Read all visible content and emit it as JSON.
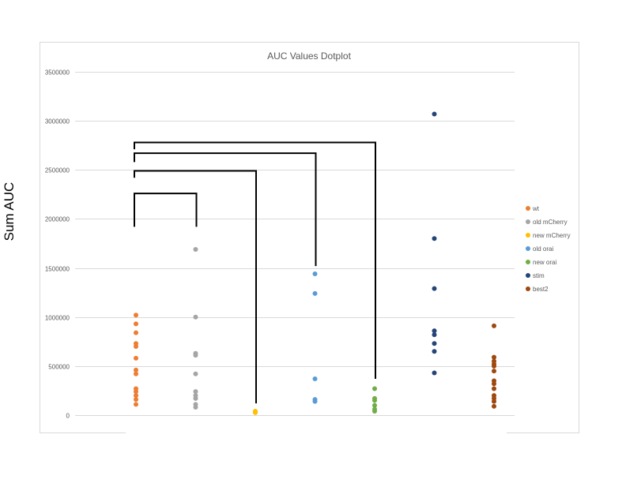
{
  "chart_data": {
    "type": "scatter",
    "title": "AUC Values Dotplot",
    "ylabel": "Sum AUC",
    "ylim": [
      0,
      3500000
    ],
    "yticks": [
      0,
      500000,
      1000000,
      1500000,
      2000000,
      2500000,
      3000000,
      3500000
    ],
    "grid": true,
    "legend_position": "right",
    "series": [
      {
        "name": "wt",
        "color": "#ED7D31",
        "x": 1,
        "values": [
          1020000,
          930000,
          840000,
          730000,
          700000,
          580000,
          460000,
          420000,
          270000,
          240000,
          200000,
          160000,
          110000
        ]
      },
      {
        "name": "old mCherry",
        "color": "#A5A5A5",
        "x": 2,
        "values": [
          1690000,
          1000000,
          630000,
          610000,
          420000,
          240000,
          200000,
          170000,
          110000,
          80000
        ]
      },
      {
        "name": "new mCherry",
        "color": "#FFC000",
        "x": 3,
        "values": [
          40000,
          30000,
          25000
        ]
      },
      {
        "name": "old orai",
        "color": "#5B9BD5",
        "x": 4,
        "values": [
          1440000,
          1240000,
          370000,
          160000,
          140000
        ]
      },
      {
        "name": "new orai",
        "color": "#70AD47",
        "x": 5,
        "values": [
          270000,
          170000,
          150000,
          100000,
          60000,
          40000
        ]
      },
      {
        "name": "stim",
        "color": "#264478",
        "x": 6,
        "values": [
          3070000,
          1800000,
          1290000,
          860000,
          820000,
          730000,
          650000,
          430000
        ]
      },
      {
        "name": "best2",
        "color": "#9E480E",
        "x": 7,
        "values": [
          910000,
          590000,
          550000,
          520000,
          500000,
          450000,
          350000,
          320000,
          270000,
          200000,
          170000,
          140000,
          90000
        ]
      }
    ],
    "brackets": [
      {
        "from": 1,
        "to": 2,
        "y_top": 2260000,
        "y_left": 1920000,
        "y_right": 1920000
      },
      {
        "from": 1,
        "to": 3,
        "y_top": 2490000,
        "y_left": 2420000,
        "y_right": 120000
      },
      {
        "from": 1,
        "to": 4,
        "y_top": 2670000,
        "y_left": 2580000,
        "y_right": 1520000
      },
      {
        "from": 1,
        "to": 5,
        "y_top": 2780000,
        "y_left": 2710000,
        "y_right": 370000
      }
    ]
  }
}
